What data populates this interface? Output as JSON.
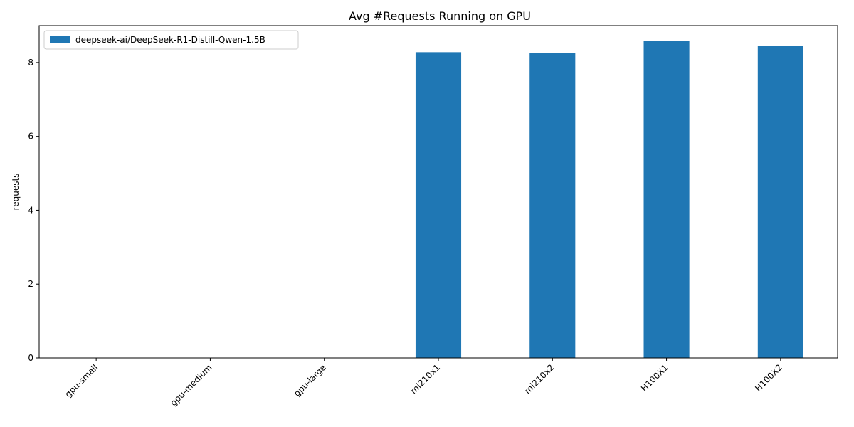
{
  "chart_data": {
    "type": "bar",
    "title": "Avg #Requests Running on GPU",
    "xlabel": "",
    "ylabel": "requests",
    "categories": [
      "gpu-small",
      "gpu-medium",
      "gpu-large",
      "mi210x1",
      "mi210x2",
      "H100X1",
      "H100X2"
    ],
    "series": [
      {
        "name": "deepseek-ai/DeepSeek-R1-Distill-Qwen-1.5B",
        "color": "#1f77b4",
        "values": [
          0,
          0,
          0,
          8.28,
          8.25,
          8.58,
          8.46
        ]
      }
    ],
    "ylim": [
      0,
      9.0
    ],
    "yticks": [
      0,
      2,
      4,
      6,
      8
    ],
    "ytick_labels": [
      "0",
      "2",
      "4",
      "6",
      "8"
    ],
    "grid": false,
    "legend_position": "top-left"
  }
}
